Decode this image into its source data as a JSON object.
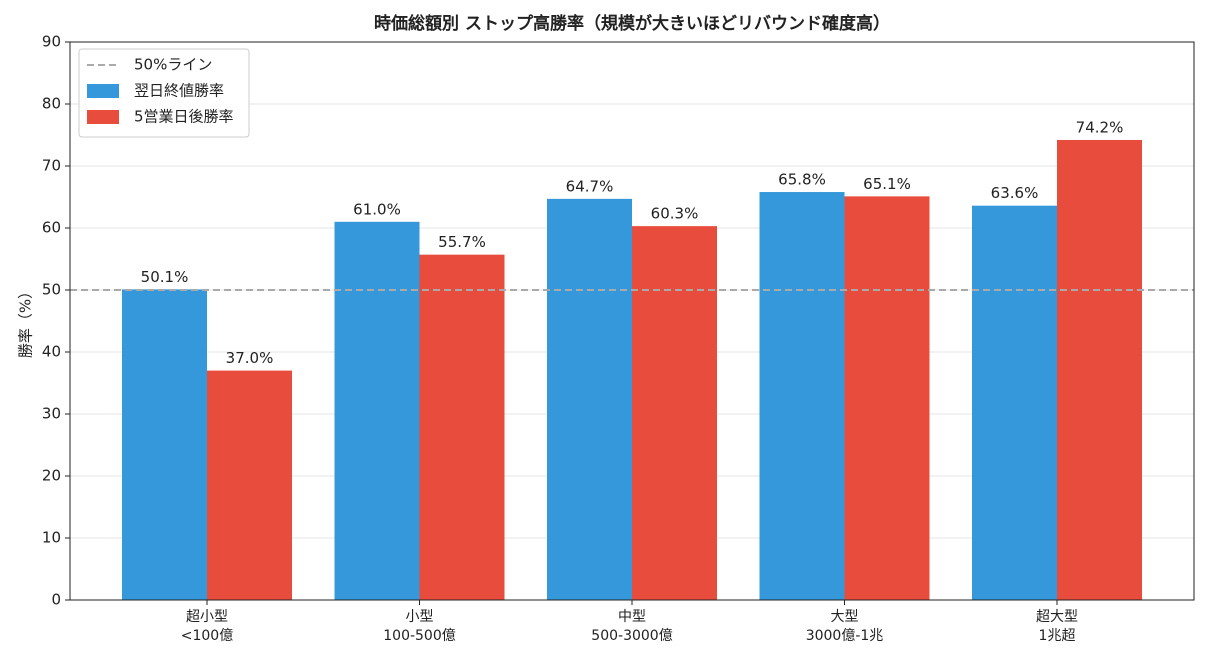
{
  "chart_data": {
    "type": "bar",
    "title": "時価総額別 ストップ高勝率（規模が大きいほどリバウンド確度高）",
    "y_label": "勝率（%）",
    "categories": [
      "超小型\n<100億",
      "小型\n100-500億",
      "中型\n500-3000億",
      "大型\n3000億-1兆",
      "超大型\n1兆超"
    ],
    "series": [
      {
        "name": "翌日終値勝率",
        "color": "#3498db",
        "values": [
          50.1,
          61.0,
          64.7,
          65.8,
          63.6
        ],
        "value_labels": [
          "50.1%",
          "61.0%",
          "64.7%",
          "65.8%",
          "63.6%"
        ]
      },
      {
        "name": "5営業日後勝率",
        "color": "#e74c3c",
        "values": [
          37.0,
          55.7,
          60.3,
          65.1,
          74.2
        ],
        "value_labels": [
          "37.0%",
          "55.7%",
          "60.3%",
          "65.1%",
          "74.2%"
        ]
      }
    ],
    "reference_line": {
      "value": 50,
      "label": "50%ライン",
      "color": "#aaaaaa"
    },
    "ylim": [
      0,
      90
    ],
    "yticks": [
      0,
      10,
      20,
      30,
      40,
      50,
      60,
      70,
      80,
      90
    ],
    "grid": true,
    "legend": "upper left"
  }
}
